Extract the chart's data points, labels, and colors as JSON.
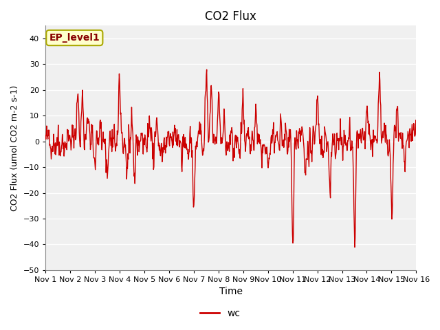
{
  "title": "CO2 Flux",
  "xlabel": "Time",
  "ylabel": "CO2 Flux (umol CO2 m-2 s-1)",
  "ylim": [
    -50,
    45
  ],
  "xlim": [
    0,
    15
  ],
  "yticks": [
    -50,
    -40,
    -30,
    -20,
    -10,
    0,
    10,
    20,
    30,
    40
  ],
  "xtick_labels": [
    "Nov 1",
    "Nov 2",
    "Nov 3",
    "Nov 4",
    "Nov 5",
    "Nov 6",
    "Nov 7",
    "Nov 8",
    "Nov 9",
    "Nov 10",
    "Nov 11",
    "Nov 12",
    "Nov 13",
    "Nov 14",
    "Nov 15",
    "Nov 16"
  ],
  "line_color": "#cc0000",
  "line_width": 1.0,
  "bg_color": "#e8e8e8",
  "plot_bg_color": "#f0f0f0",
  "annotation_text": "EP_level1",
  "annotation_bg": "#ffffcc",
  "annotation_border": "#cccc00",
  "annotation_text_color": "#880000",
  "legend_label": "wc",
  "seed": 42,
  "n_points": 900
}
